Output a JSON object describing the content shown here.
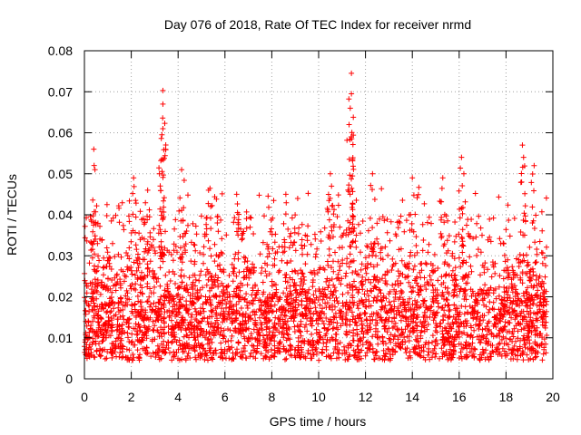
{
  "chart_data": {
    "type": "scatter",
    "title": "Day 076 of 2018, Rate Of TEC Index for receiver nrmd",
    "xlabel": "GPS time / hours",
    "ylabel": "ROTI / TECUs",
    "xlim": [
      0,
      20
    ],
    "ylim": [
      0,
      0.08
    ],
    "xticks": [
      0,
      2,
      4,
      6,
      8,
      10,
      12,
      14,
      16,
      18,
      20
    ],
    "xtick_labels": [
      "0",
      "2",
      "4",
      "6",
      "8",
      "10",
      "12",
      "14",
      "16",
      "18",
      "20"
    ],
    "yticks": [
      0,
      0.01,
      0.02,
      0.03,
      0.04,
      0.05,
      0.06,
      0.07,
      0.08
    ],
    "ytick_labels": [
      "0",
      "0.01",
      "0.02",
      "0.03",
      "0.04",
      "0.05",
      "0.06",
      "0.07",
      "0.08"
    ],
    "grid": true,
    "marker": "+",
    "series": [
      {
        "name": "ROTI",
        "color": "#ff0000",
        "x_range_hours": [
          0,
          19.75
        ],
        "typical_range": [
          0.005,
          0.03
        ],
        "median": 0.015,
        "peaks": [
          {
            "x": 0.4,
            "y": 0.056
          },
          {
            "x": 0.45,
            "y": 0.051
          },
          {
            "x": 2.1,
            "y": 0.049
          },
          {
            "x": 2.7,
            "y": 0.046
          },
          {
            "x": 3.35,
            "y": 0.0703
          },
          {
            "x": 3.35,
            "y": 0.067
          },
          {
            "x": 3.35,
            "y": 0.061
          },
          {
            "x": 3.3,
            "y": 0.0535
          },
          {
            "x": 4.15,
            "y": 0.051
          },
          {
            "x": 5.3,
            "y": 0.046
          },
          {
            "x": 6.5,
            "y": 0.045
          },
          {
            "x": 8.6,
            "y": 0.045
          },
          {
            "x": 10.5,
            "y": 0.05
          },
          {
            "x": 10.55,
            "y": 0.047
          },
          {
            "x": 11.4,
            "y": 0.0745
          },
          {
            "x": 11.4,
            "y": 0.0695
          },
          {
            "x": 11.35,
            "y": 0.066
          },
          {
            "x": 11.3,
            "y": 0.062
          },
          {
            "x": 11.45,
            "y": 0.0535
          },
          {
            "x": 12.3,
            "y": 0.05
          },
          {
            "x": 14.0,
            "y": 0.049
          },
          {
            "x": 15.3,
            "y": 0.049
          },
          {
            "x": 16.1,
            "y": 0.054
          },
          {
            "x": 16.2,
            "y": 0.05
          },
          {
            "x": 18.7,
            "y": 0.057
          },
          {
            "x": 18.75,
            "y": 0.054
          },
          {
            "x": 19.2,
            "y": 0.052
          }
        ]
      }
    ]
  }
}
